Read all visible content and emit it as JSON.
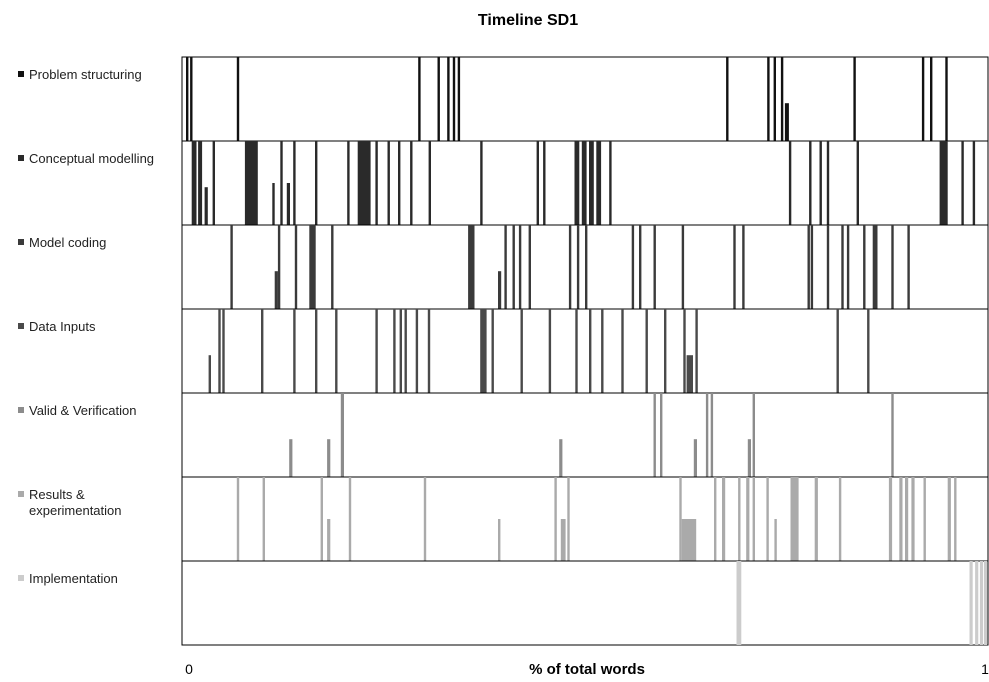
{
  "chart_data": {
    "type": "bar",
    "title": "Timeline SD1",
    "xlabel": "% of total words",
    "ylabel": "",
    "xlim": [
      0,
      1
    ],
    "x_ticks": [
      "0",
      "1"
    ],
    "grid": false,
    "legend": "left",
    "series": [
      {
        "name": "Problem structuring",
        "color": "#111111",
        "marks": [
          {
            "x": 0.005,
            "w": 0.003,
            "h": 1
          },
          {
            "x": 0.01,
            "w": 0.003,
            "h": 1
          },
          {
            "x": 0.068,
            "w": 0.003,
            "h": 1
          },
          {
            "x": 0.293,
            "w": 0.003,
            "h": 1
          },
          {
            "x": 0.317,
            "w": 0.003,
            "h": 1
          },
          {
            "x": 0.329,
            "w": 0.003,
            "h": 1
          },
          {
            "x": 0.336,
            "w": 0.003,
            "h": 1
          },
          {
            "x": 0.342,
            "w": 0.003,
            "h": 1
          },
          {
            "x": 0.675,
            "w": 0.003,
            "h": 1
          },
          {
            "x": 0.726,
            "w": 0.003,
            "h": 1
          },
          {
            "x": 0.734,
            "w": 0.003,
            "h": 1
          },
          {
            "x": 0.743,
            "w": 0.003,
            "h": 1
          },
          {
            "x": 0.748,
            "w": 0.005,
            "h": 0.45
          },
          {
            "x": 0.833,
            "w": 0.003,
            "h": 1
          },
          {
            "x": 0.918,
            "w": 0.003,
            "h": 1
          },
          {
            "x": 0.928,
            "w": 0.003,
            "h": 1
          },
          {
            "x": 0.947,
            "w": 0.003,
            "h": 1
          }
        ]
      },
      {
        "name": "Conceptual modelling",
        "color": "#2a2a2a",
        "marks": [
          {
            "x": 0.012,
            "w": 0.006,
            "h": 1
          },
          {
            "x": 0.02,
            "w": 0.005,
            "h": 1
          },
          {
            "x": 0.028,
            "w": 0.004,
            "h": 0.45
          },
          {
            "x": 0.038,
            "w": 0.003,
            "h": 1
          },
          {
            "x": 0.078,
            "w": 0.016,
            "h": 1
          },
          {
            "x": 0.112,
            "w": 0.003,
            "h": 0.5
          },
          {
            "x": 0.122,
            "w": 0.003,
            "h": 1
          },
          {
            "x": 0.13,
            "w": 0.004,
            "h": 0.5
          },
          {
            "x": 0.138,
            "w": 0.003,
            "h": 1
          },
          {
            "x": 0.165,
            "w": 0.003,
            "h": 1
          },
          {
            "x": 0.205,
            "w": 0.003,
            "h": 1
          },
          {
            "x": 0.218,
            "w": 0.016,
            "h": 1
          },
          {
            "x": 0.24,
            "w": 0.003,
            "h": 1
          },
          {
            "x": 0.255,
            "w": 0.003,
            "h": 1
          },
          {
            "x": 0.268,
            "w": 0.003,
            "h": 1
          },
          {
            "x": 0.283,
            "w": 0.003,
            "h": 1
          },
          {
            "x": 0.306,
            "w": 0.003,
            "h": 1
          },
          {
            "x": 0.37,
            "w": 0.003,
            "h": 1
          },
          {
            "x": 0.44,
            "w": 0.003,
            "h": 1
          },
          {
            "x": 0.448,
            "w": 0.003,
            "h": 1
          },
          {
            "x": 0.487,
            "w": 0.006,
            "h": 1
          },
          {
            "x": 0.496,
            "w": 0.006,
            "h": 1
          },
          {
            "x": 0.505,
            "w": 0.006,
            "h": 1
          },
          {
            "x": 0.514,
            "w": 0.006,
            "h": 1
          },
          {
            "x": 0.53,
            "w": 0.003,
            "h": 1
          },
          {
            "x": 0.753,
            "w": 0.003,
            "h": 1
          },
          {
            "x": 0.778,
            "w": 0.003,
            "h": 1
          },
          {
            "x": 0.791,
            "w": 0.003,
            "h": 1
          },
          {
            "x": 0.8,
            "w": 0.003,
            "h": 1
          },
          {
            "x": 0.837,
            "w": 0.003,
            "h": 1
          },
          {
            "x": 0.94,
            "w": 0.01,
            "h": 1
          },
          {
            "x": 0.967,
            "w": 0.003,
            "h": 1
          },
          {
            "x": 0.981,
            "w": 0.003,
            "h": 1
          }
        ]
      },
      {
        "name": "Model coding",
        "color": "#3a3a3a",
        "marks": [
          {
            "x": 0.06,
            "w": 0.003,
            "h": 1
          },
          {
            "x": 0.115,
            "w": 0.004,
            "h": 0.45
          },
          {
            "x": 0.119,
            "w": 0.003,
            "h": 1
          },
          {
            "x": 0.14,
            "w": 0.003,
            "h": 1
          },
          {
            "x": 0.158,
            "w": 0.008,
            "h": 1
          },
          {
            "x": 0.185,
            "w": 0.003,
            "h": 1
          },
          {
            "x": 0.355,
            "w": 0.008,
            "h": 1
          },
          {
            "x": 0.392,
            "w": 0.004,
            "h": 0.45
          },
          {
            "x": 0.4,
            "w": 0.003,
            "h": 1
          },
          {
            "x": 0.41,
            "w": 0.003,
            "h": 1
          },
          {
            "x": 0.418,
            "w": 0.003,
            "h": 1
          },
          {
            "x": 0.43,
            "w": 0.003,
            "h": 1
          },
          {
            "x": 0.48,
            "w": 0.003,
            "h": 1
          },
          {
            "x": 0.49,
            "w": 0.003,
            "h": 1
          },
          {
            "x": 0.5,
            "w": 0.003,
            "h": 1
          },
          {
            "x": 0.558,
            "w": 0.003,
            "h": 1
          },
          {
            "x": 0.567,
            "w": 0.003,
            "h": 1
          },
          {
            "x": 0.585,
            "w": 0.003,
            "h": 1
          },
          {
            "x": 0.62,
            "w": 0.003,
            "h": 1
          },
          {
            "x": 0.684,
            "w": 0.003,
            "h": 1
          },
          {
            "x": 0.695,
            "w": 0.003,
            "h": 1
          },
          {
            "x": 0.776,
            "w": 0.003,
            "h": 1
          },
          {
            "x": 0.78,
            "w": 0.003,
            "h": 1
          },
          {
            "x": 0.8,
            "w": 0.003,
            "h": 1
          },
          {
            "x": 0.818,
            "w": 0.003,
            "h": 1
          },
          {
            "x": 0.825,
            "w": 0.003,
            "h": 1
          },
          {
            "x": 0.845,
            "w": 0.003,
            "h": 1
          },
          {
            "x": 0.857,
            "w": 0.006,
            "h": 1
          },
          {
            "x": 0.88,
            "w": 0.003,
            "h": 1
          },
          {
            "x": 0.9,
            "w": 0.003,
            "h": 1
          }
        ]
      },
      {
        "name": "Data Inputs",
        "color": "#4a4a4a",
        "marks": [
          {
            "x": 0.033,
            "w": 0.003,
            "h": 0.45
          },
          {
            "x": 0.045,
            "w": 0.003,
            "h": 1
          },
          {
            "x": 0.05,
            "w": 0.003,
            "h": 1
          },
          {
            "x": 0.098,
            "w": 0.003,
            "h": 1
          },
          {
            "x": 0.138,
            "w": 0.003,
            "h": 1
          },
          {
            "x": 0.165,
            "w": 0.003,
            "h": 1
          },
          {
            "x": 0.19,
            "w": 0.003,
            "h": 1
          },
          {
            "x": 0.24,
            "w": 0.003,
            "h": 1
          },
          {
            "x": 0.262,
            "w": 0.003,
            "h": 1
          },
          {
            "x": 0.27,
            "w": 0.003,
            "h": 1
          },
          {
            "x": 0.276,
            "w": 0.003,
            "h": 1
          },
          {
            "x": 0.29,
            "w": 0.003,
            "h": 1
          },
          {
            "x": 0.305,
            "w": 0.003,
            "h": 1
          },
          {
            "x": 0.37,
            "w": 0.008,
            "h": 1
          },
          {
            "x": 0.384,
            "w": 0.003,
            "h": 1
          },
          {
            "x": 0.42,
            "w": 0.003,
            "h": 1
          },
          {
            "x": 0.455,
            "w": 0.003,
            "h": 1
          },
          {
            "x": 0.488,
            "w": 0.003,
            "h": 1
          },
          {
            "x": 0.505,
            "w": 0.003,
            "h": 1
          },
          {
            "x": 0.52,
            "w": 0.003,
            "h": 1
          },
          {
            "x": 0.545,
            "w": 0.003,
            "h": 1
          },
          {
            "x": 0.575,
            "w": 0.003,
            "h": 1
          },
          {
            "x": 0.598,
            "w": 0.003,
            "h": 1
          },
          {
            "x": 0.622,
            "w": 0.003,
            "h": 1
          },
          {
            "x": 0.626,
            "w": 0.008,
            "h": 0.45
          },
          {
            "x": 0.637,
            "w": 0.003,
            "h": 1
          },
          {
            "x": 0.812,
            "w": 0.003,
            "h": 1
          },
          {
            "x": 0.85,
            "w": 0.003,
            "h": 1
          }
        ]
      },
      {
        "name": "Valid & Verification",
        "color": "#8c8c8c",
        "marks": [
          {
            "x": 0.133,
            "w": 0.004,
            "h": 0.45
          },
          {
            "x": 0.18,
            "w": 0.004,
            "h": 0.45
          },
          {
            "x": 0.197,
            "w": 0.004,
            "h": 1
          },
          {
            "x": 0.468,
            "w": 0.004,
            "h": 0.45
          },
          {
            "x": 0.585,
            "w": 0.003,
            "h": 1
          },
          {
            "x": 0.593,
            "w": 0.003,
            "h": 1
          },
          {
            "x": 0.635,
            "w": 0.004,
            "h": 0.45
          },
          {
            "x": 0.65,
            "w": 0.003,
            "h": 1
          },
          {
            "x": 0.656,
            "w": 0.003,
            "h": 1
          },
          {
            "x": 0.702,
            "w": 0.004,
            "h": 0.45
          },
          {
            "x": 0.708,
            "w": 0.003,
            "h": 1
          },
          {
            "x": 0.88,
            "w": 0.003,
            "h": 1
          }
        ]
      },
      {
        "name": "Results & experimentation",
        "color": "#aaaaaa",
        "marks": [
          {
            "x": 0.068,
            "w": 0.003,
            "h": 1
          },
          {
            "x": 0.1,
            "w": 0.003,
            "h": 1
          },
          {
            "x": 0.172,
            "w": 0.003,
            "h": 1
          },
          {
            "x": 0.18,
            "w": 0.004,
            "h": 0.5
          },
          {
            "x": 0.207,
            "w": 0.003,
            "h": 1
          },
          {
            "x": 0.3,
            "w": 0.003,
            "h": 1
          },
          {
            "x": 0.392,
            "w": 0.003,
            "h": 0.5
          },
          {
            "x": 0.462,
            "w": 0.003,
            "h": 1
          },
          {
            "x": 0.47,
            "w": 0.006,
            "h": 0.5
          },
          {
            "x": 0.478,
            "w": 0.003,
            "h": 1
          },
          {
            "x": 0.617,
            "w": 0.003,
            "h": 1
          },
          {
            "x": 0.62,
            "w": 0.018,
            "h": 0.5
          },
          {
            "x": 0.66,
            "w": 0.003,
            "h": 1
          },
          {
            "x": 0.67,
            "w": 0.004,
            "h": 1
          },
          {
            "x": 0.69,
            "w": 0.003,
            "h": 1
          },
          {
            "x": 0.7,
            "w": 0.004,
            "h": 1
          },
          {
            "x": 0.708,
            "w": 0.003,
            "h": 1
          },
          {
            "x": 0.725,
            "w": 0.003,
            "h": 1
          },
          {
            "x": 0.735,
            "w": 0.003,
            "h": 0.5
          },
          {
            "x": 0.755,
            "w": 0.01,
            "h": 1
          },
          {
            "x": 0.785,
            "w": 0.004,
            "h": 1
          },
          {
            "x": 0.815,
            "w": 0.003,
            "h": 1
          },
          {
            "x": 0.877,
            "w": 0.004,
            "h": 1
          },
          {
            "x": 0.89,
            "w": 0.004,
            "h": 1
          },
          {
            "x": 0.897,
            "w": 0.004,
            "h": 1
          },
          {
            "x": 0.905,
            "w": 0.004,
            "h": 1
          },
          {
            "x": 0.92,
            "w": 0.003,
            "h": 1
          },
          {
            "x": 0.95,
            "w": 0.004,
            "h": 1
          },
          {
            "x": 0.958,
            "w": 0.003,
            "h": 1
          }
        ]
      },
      {
        "name": "Implementation",
        "color": "#cccccc",
        "marks": [
          {
            "x": 0.688,
            "w": 0.006,
            "h": 1
          },
          {
            "x": 0.977,
            "w": 0.004,
            "h": 1
          },
          {
            "x": 0.984,
            "w": 0.004,
            "h": 1
          },
          {
            "x": 0.99,
            "w": 0.004,
            "h": 1
          },
          {
            "x": 0.995,
            "w": 0.004,
            "h": 1
          }
        ]
      }
    ]
  }
}
